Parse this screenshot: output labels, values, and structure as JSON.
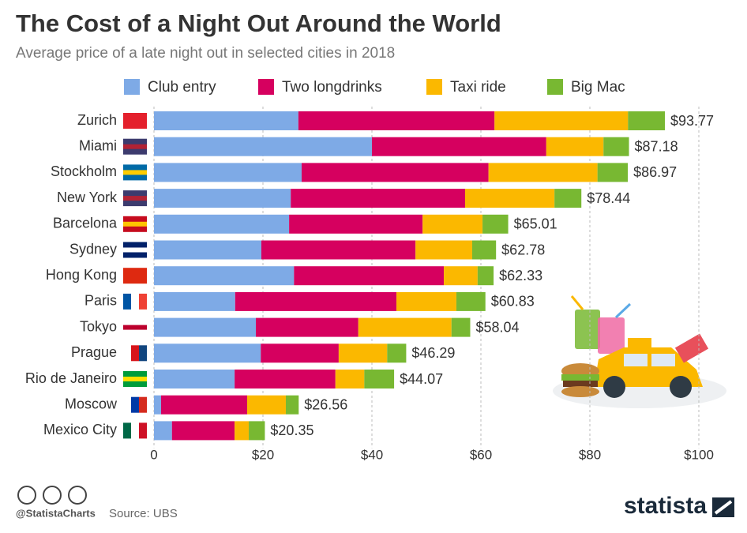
{
  "chart_data": {
    "type": "stacked-barh",
    "title": "The Cost of a Night Out Around the World",
    "subtitle": "Average price of a late night out in selected cities in 2018",
    "categories": [
      "Zurich",
      "Miami",
      "Stockholm",
      "New York",
      "Barcelona",
      "Sydney",
      "Hong Kong",
      "Paris",
      "Tokyo",
      "Prague",
      "Rio de Janeiro",
      "Moscow",
      "Mexico City"
    ],
    "series": [
      {
        "name": "Club entry",
        "color": "#7eaae6",
        "values": [
          26.5,
          40.0,
          27.1,
          25.1,
          24.8,
          19.7,
          25.7,
          14.9,
          18.7,
          19.6,
          14.8,
          1.3,
          3.3
        ]
      },
      {
        "name": "Two longdrinks",
        "color": "#d6005f",
        "values": [
          36.0,
          32.0,
          34.3,
          32.0,
          24.5,
          28.3,
          27.5,
          29.6,
          18.8,
          14.3,
          18.5,
          15.8,
          11.5
        ]
      },
      {
        "name": "Taxi ride",
        "color": "#fbb800",
        "values": [
          24.5,
          10.5,
          20.0,
          16.4,
          11.0,
          10.4,
          6.2,
          11.0,
          17.1,
          8.9,
          5.3,
          7.1,
          2.6
        ]
      },
      {
        "name": "Big Mac",
        "color": "#78b832",
        "values": [
          6.77,
          4.68,
          5.57,
          4.94,
          4.71,
          4.38,
          2.93,
          5.33,
          3.44,
          3.49,
          5.47,
          2.36,
          2.95
        ]
      }
    ],
    "totals": {
      "values": [
        93.77,
        87.18,
        86.97,
        78.44,
        65.01,
        62.78,
        62.33,
        60.83,
        58.04,
        46.29,
        44.07,
        26.56,
        20.35
      ],
      "value_labels": [
        "$93.77",
        "$87.18",
        "$86.97",
        "$78.44",
        "$65.01",
        "$62.78",
        "$62.33",
        "$60.83",
        "$58.04",
        "$46.29",
        "$44.07",
        "$26.56",
        "$20.35"
      ]
    },
    "xlim": [
      0,
      100
    ],
    "xticks": [
      0,
      {
        "value": 20,
        "label": "$20"
      },
      {
        "value": 40,
        "label": "$40"
      },
      {
        "value": 60,
        "label": "$60"
      },
      {
        "value": 80,
        "label": "$80"
      },
      {
        "value": 100,
        "label": "$100"
      }
    ],
    "grid": true,
    "legend": "top",
    "handle": "@StatistaCharts",
    "source": "Source: UBS",
    "brand": "statista"
  }
}
